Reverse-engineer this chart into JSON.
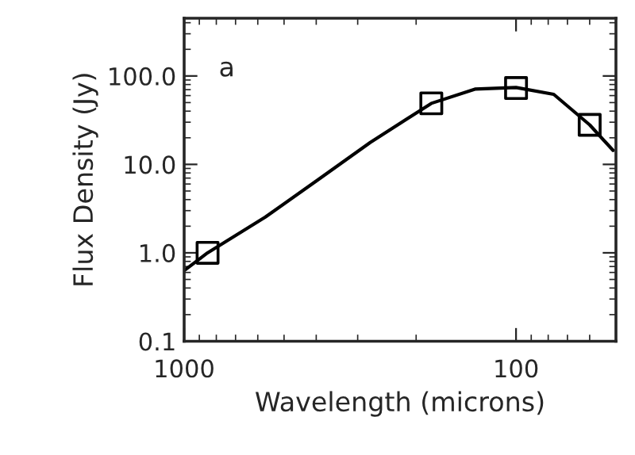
{
  "chart_data": {
    "type": "line",
    "xlabel": "Wavelength (microns)",
    "ylabel": "Flux Density (Jy)",
    "log": "xy",
    "xlim": [
      1000,
      50
    ],
    "ylim": [
      0.1,
      450
    ],
    "xticks": [
      1000,
      100
    ],
    "yticks": [
      {
        "value": 0.1,
        "label": "0.1"
      },
      {
        "value": 1,
        "label": "1.0"
      },
      {
        "value": 10,
        "label": "10.0"
      },
      {
        "value": 100,
        "label": "100.0"
      }
    ],
    "annotations": [
      "a"
    ],
    "grid": false,
    "series": [
      {
        "color": "#000000",
        "line_style": "solid",
        "marker": "none",
        "x": [
          1000,
          850,
          569,
          395,
          275,
          180,
          133,
          100,
          77,
          60,
          51
        ],
        "values": [
          0.63,
          1.0,
          2.54,
          6.7,
          17.7,
          49,
          71,
          74,
          62,
          28,
          14.4
        ]
      },
      {
        "type": "scatter",
        "color": "#000000",
        "marker": "square",
        "x": [
          850,
          180,
          100,
          60
        ],
        "values": [
          1.0,
          49,
          73,
          28
        ]
      }
    ]
  }
}
